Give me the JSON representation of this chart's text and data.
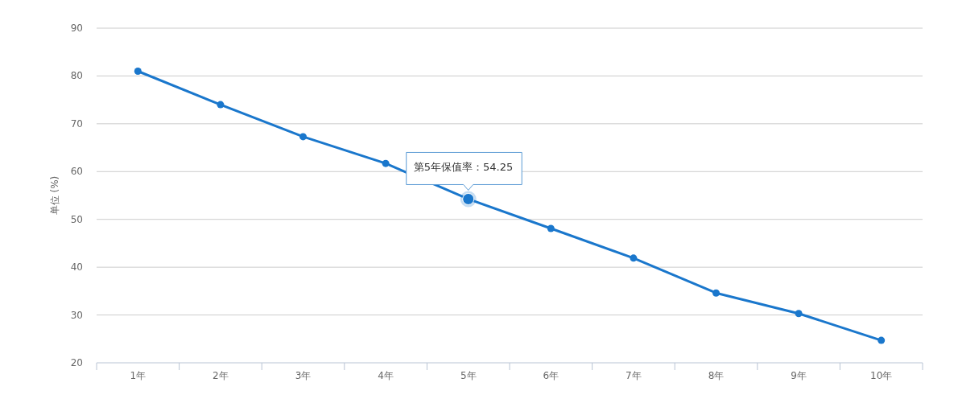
{
  "chart_data": {
    "type": "line",
    "ylabel": "单位 (%)",
    "categories": [
      "1年",
      "2年",
      "3年",
      "4年",
      "5年",
      "6年",
      "7年",
      "8年",
      "9年",
      "10年"
    ],
    "series": [
      {
        "color": "#1a77cc",
        "values": [
          81,
          74,
          67.3,
          61.7,
          54.25,
          48.1,
          41.9,
          34.6,
          30.3,
          24.7
        ]
      }
    ],
    "ylim": [
      20,
      90
    ],
    "yticks": [
      20,
      30,
      40,
      50,
      60,
      70,
      80,
      90
    ],
    "grid": "y",
    "marker": "circle",
    "annotations": [
      {
        "text": "第5年保值率：54.25",
        "x": "5年",
        "y": 54.25
      }
    ]
  }
}
